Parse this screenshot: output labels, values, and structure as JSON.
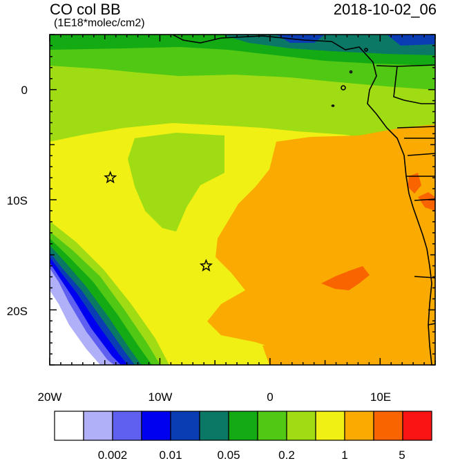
{
  "header": {
    "variable": "CO col BB",
    "units": "(1E18*molec/cm2)",
    "timestamp": "2018-10-02_06"
  },
  "axes": {
    "x_ticks": [
      "20W",
      "10W",
      "0",
      "10E"
    ],
    "y_ticks": [
      "0",
      "10S",
      "20S"
    ],
    "lon_range": [
      -20,
      15
    ],
    "lat_range": [
      -25,
      5
    ]
  },
  "colorbar": {
    "colors": [
      "#ffffff",
      "#b0b0f8",
      "#6060f0",
      "#0000f0",
      "#0a3cb4",
      "#0a7864",
      "#14aa14",
      "#50c814",
      "#a0dc14",
      "#f0f014",
      "#faaa00",
      "#fa6400",
      "#fa1414"
    ],
    "labels": [
      "0.002",
      "0.01",
      "0.05",
      "0.2",
      "1",
      "5"
    ]
  },
  "markers": [
    {
      "name": "star-west",
      "lon": -14.5,
      "lat": -8.0
    },
    {
      "name": "star-south",
      "lon": -5.8,
      "lat": -16.0
    }
  ]
}
